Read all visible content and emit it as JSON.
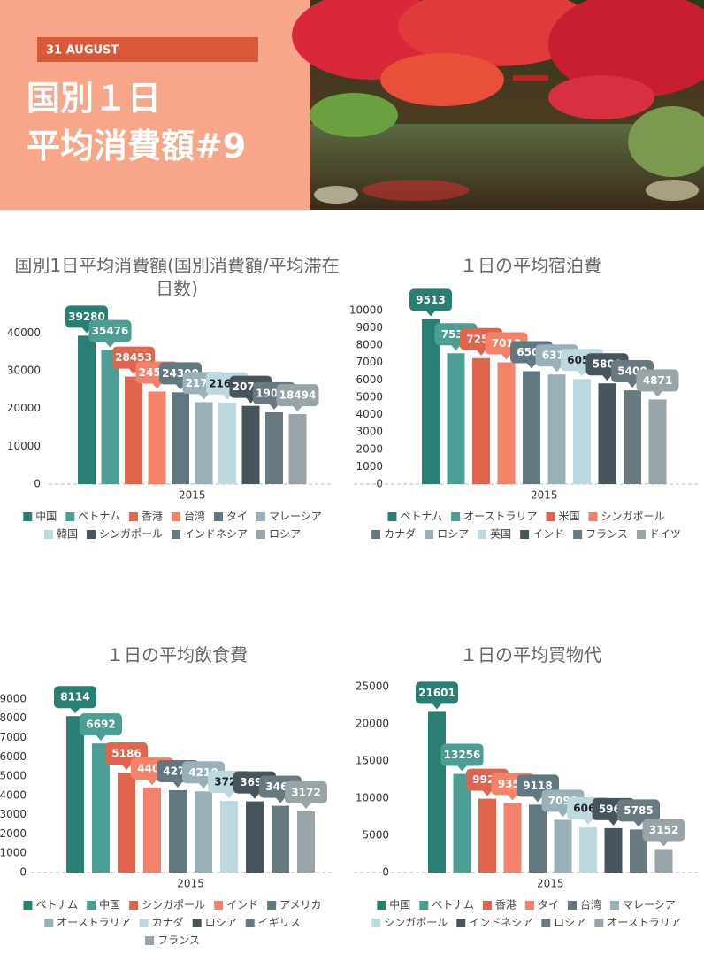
{
  "header": {
    "date": "31 AUGUST",
    "title_lines": [
      "国別１日",
      "平均消費額#9"
    ]
  },
  "chart_data": [
    {
      "type": "bar",
      "title": "国別1日平均消費額(国別消費額/平均滞在日数)",
      "categories": [
        "2015"
      ],
      "ylim": [
        0,
        45000
      ],
      "yticks": [
        0,
        10000,
        20000,
        30000,
        40000
      ],
      "series": [
        {
          "name": "中国",
          "color": "#2a7f74",
          "values": [
            39280
          ]
        },
        {
          "name": "ベトナム",
          "color": "#4a9e94",
          "values": [
            35476
          ]
        },
        {
          "name": "香港",
          "color": "#e0654c",
          "values": [
            28453
          ]
        },
        {
          "name": "台湾",
          "color": "#f4826a",
          "values": [
            24500
          ]
        },
        {
          "name": "タイ",
          "color": "#617880",
          "values": [
            24300
          ]
        },
        {
          "name": "マレーシア",
          "color": "#98b1b8",
          "values": [
            21700
          ]
        },
        {
          "name": "韓国",
          "color": "#bcd9e0",
          "values": [
            21600
          ]
        },
        {
          "name": "シンガポール",
          "color": "#45555b",
          "values": [
            20700
          ]
        },
        {
          "name": "インドネシア",
          "color": "#687a80",
          "values": [
            19000
          ]
        },
        {
          "name": "ロシア",
          "color": "#98a4a8",
          "values": [
            18494
          ]
        }
      ]
    },
    {
      "type": "bar",
      "title": "１日の平均宿泊費",
      "categories": [
        "2015"
      ],
      "ylim": [
        0,
        10500
      ],
      "yticks": [
        0,
        1000,
        2000,
        3000,
        4000,
        5000,
        6000,
        7000,
        8000,
        9000,
        10000
      ],
      "series": [
        {
          "name": "ベトナム",
          "color": "#2a7f74",
          "values": [
            9513
          ]
        },
        {
          "name": "オーストラリア",
          "color": "#4a9e94",
          "values": [
            7530
          ]
        },
        {
          "name": "米国",
          "color": "#e0654c",
          "values": [
            7250
          ]
        },
        {
          "name": "シンガポール",
          "color": "#f4826a",
          "values": [
            7010
          ]
        },
        {
          "name": "カナダ",
          "color": "#617880",
          "values": [
            6500
          ]
        },
        {
          "name": "ロシア",
          "color": "#98b1b8",
          "values": [
            6310
          ]
        },
        {
          "name": "英国",
          "color": "#bcd9e0",
          "values": [
            6050
          ]
        },
        {
          "name": "インド",
          "color": "#45555b",
          "values": [
            5800
          ]
        },
        {
          "name": "フランス",
          "color": "#687a80",
          "values": [
            5400
          ]
        },
        {
          "name": "ドイツ",
          "color": "#98a4a8",
          "values": [
            4871
          ]
        }
      ]
    },
    {
      "type": "bar",
      "title": "１日の平均飲食費",
      "categories": [
        "2015"
      ],
      "ylim": [
        0,
        9500
      ],
      "yticks": [
        0,
        1000,
        2000,
        3000,
        4000,
        5000,
        6000,
        7000,
        8000,
        9000
      ],
      "series": [
        {
          "name": "ベトナム",
          "color": "#2a7f74",
          "values": [
            8114
          ]
        },
        {
          "name": "中国",
          "color": "#4a9e94",
          "values": [
            6692
          ]
        },
        {
          "name": "シンガポール",
          "color": "#e0654c",
          "values": [
            5186
          ]
        },
        {
          "name": "インド",
          "color": "#f4826a",
          "values": [
            4400
          ]
        },
        {
          "name": "アメリカ",
          "color": "#617880",
          "values": [
            4270
          ]
        },
        {
          "name": "オーストラリア",
          "color": "#98b1b8",
          "values": [
            4210
          ]
        },
        {
          "name": "カナダ",
          "color": "#bcd9e0",
          "values": [
            3720
          ]
        },
        {
          "name": "ロシア",
          "color": "#45555b",
          "values": [
            3690
          ]
        },
        {
          "name": "イギリス",
          "color": "#687a80",
          "values": [
            3460
          ]
        },
        {
          "name": "フランス",
          "color": "#98a4a8",
          "values": [
            3172
          ]
        }
      ]
    },
    {
      "type": "bar",
      "title": "１日の平均買物代",
      "categories": [
        "2015"
      ],
      "ylim": [
        0,
        27000
      ],
      "yticks": [
        0,
        5000,
        10000,
        15000,
        20000,
        25000
      ],
      "series": [
        {
          "name": "中国",
          "color": "#2a7f74",
          "values": [
            21601
          ]
        },
        {
          "name": "ベトナム",
          "color": "#4a9e94",
          "values": [
            13256
          ]
        },
        {
          "name": "香港",
          "color": "#e0654c",
          "values": [
            9920
          ]
        },
        {
          "name": "タイ",
          "color": "#f4826a",
          "values": [
            9350
          ]
        },
        {
          "name": "台湾",
          "color": "#617880",
          "values": [
            9118
          ]
        },
        {
          "name": "マレーシア",
          "color": "#98b1b8",
          "values": [
            7090
          ]
        },
        {
          "name": "シンガポール",
          "color": "#bcd9e0",
          "values": [
            6060
          ]
        },
        {
          "name": "インドネシア",
          "color": "#45555b",
          "values": [
            5960
          ]
        },
        {
          "name": "ロシア",
          "color": "#687a80",
          "values": [
            5785
          ]
        },
        {
          "name": "オーストラリア",
          "color": "#98a4a8",
          "values": [
            3152
          ]
        }
      ]
    }
  ]
}
